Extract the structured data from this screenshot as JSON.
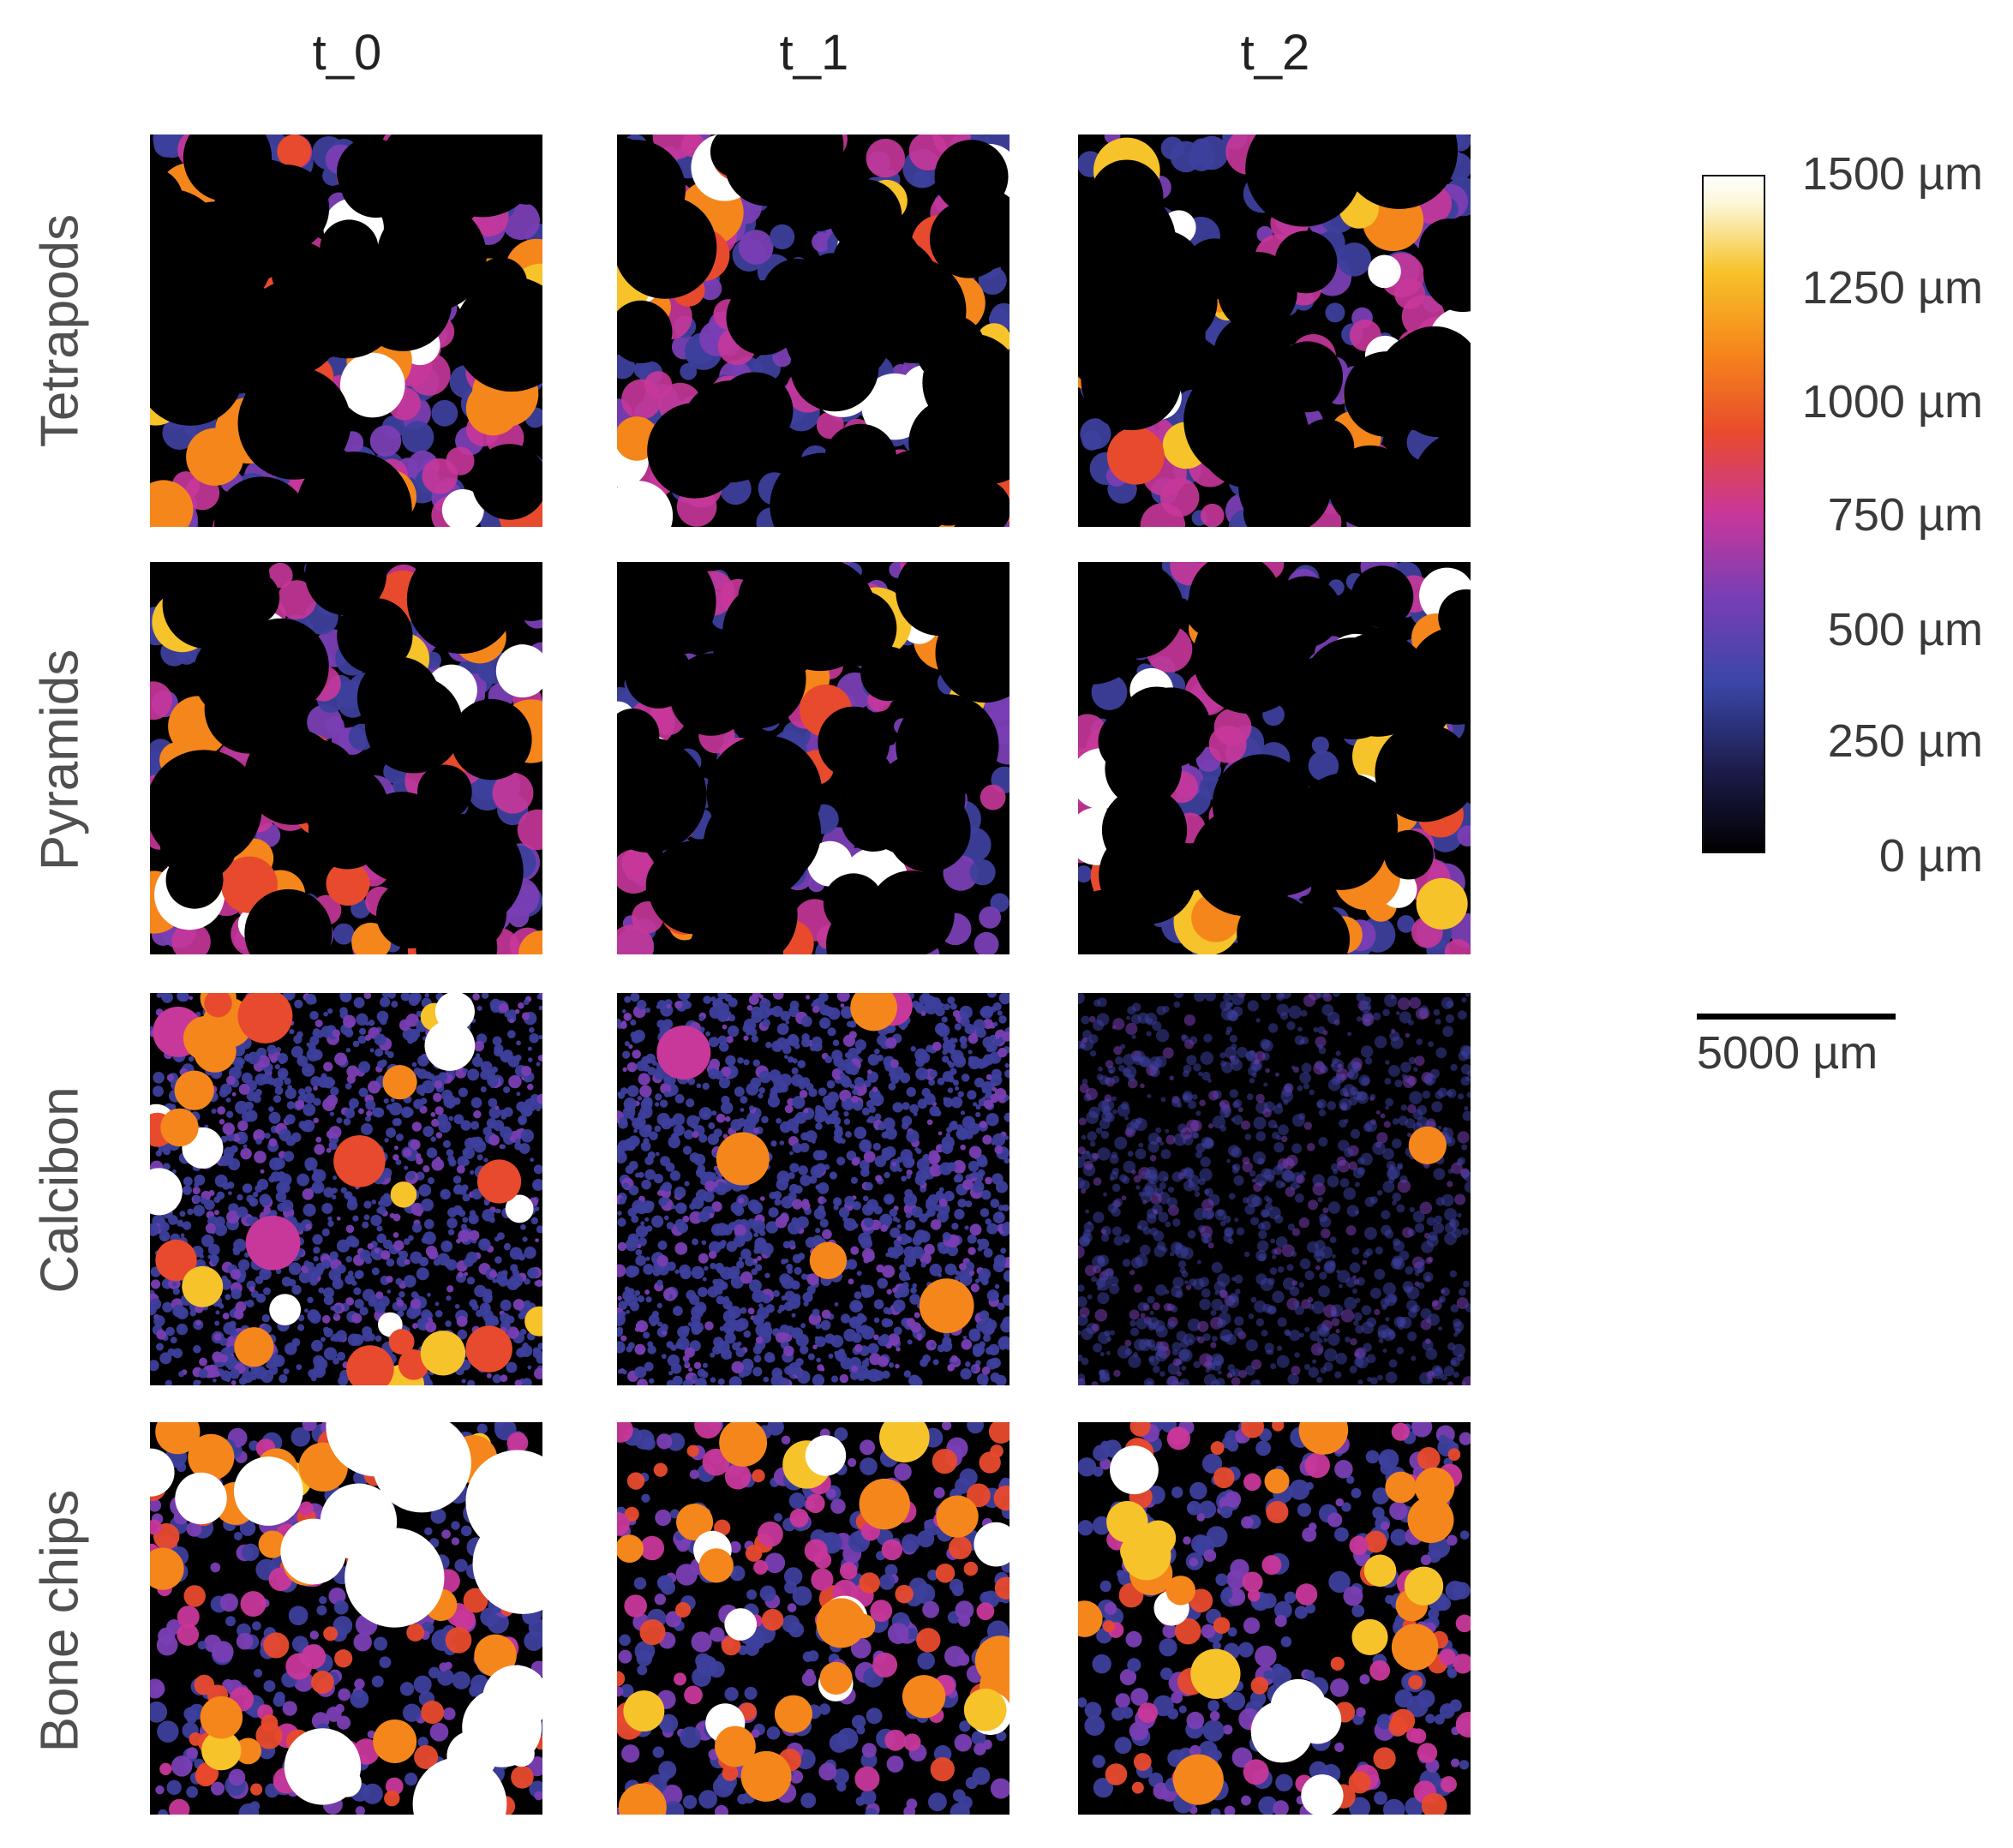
{
  "columns": [
    "t_0",
    "t_1",
    "t_2"
  ],
  "rows": [
    "Tetrapods",
    "Pyramids",
    "Calcibon",
    "Bone chips"
  ],
  "colorbar": {
    "ticks": [
      "1500 µm",
      "1250 µm",
      "1000 µm",
      "750 µm",
      "500 µm",
      "250 µm",
      "0 µm"
    ],
    "colormap": "inferno-like: black → indigo → purple → magenta → red → orange → yellow → white"
  },
  "scale_bar": {
    "label": "5000 µm"
  },
  "palette": {
    "background": "#000000",
    "indigo": "#3d3f9c",
    "purple": "#7a3eb4",
    "magenta": "#c8379a",
    "red": "#e84a2d",
    "orange": "#f5861b",
    "yellow": "#f7c32a",
    "white": "#ffffff"
  }
}
